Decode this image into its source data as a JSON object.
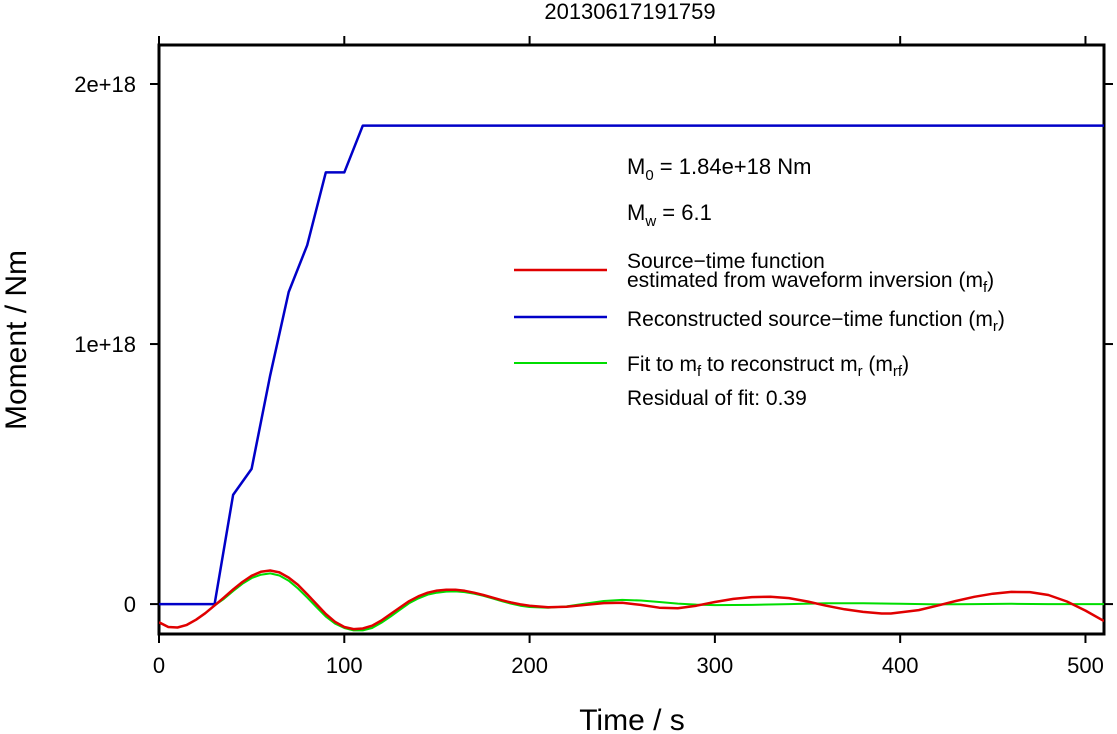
{
  "chart_data": {
    "type": "line",
    "title": "20130617191759",
    "xlabel": "Time / s",
    "ylabel": "Moment / Nm",
    "xlim": [
      0,
      510
    ],
    "ylim": [
      -1.15e+17,
      2.15e+18
    ],
    "x_ticks": [
      0,
      100,
      200,
      300,
      400,
      500
    ],
    "x_tick_labels": [
      "0",
      "100",
      "200",
      "300",
      "400",
      "500"
    ],
    "y_ticks": [
      0,
      1e+18,
      2e+18
    ],
    "y_tick_labels": [
      "0",
      "1e+18",
      "2e+18"
    ],
    "grid": false,
    "legend_placement": "right",
    "annotations": {
      "m0_main": "M",
      "m0_sub": "0",
      "m0_rest": " = 1.84e+18 Nm",
      "mw_main": "M",
      "mw_sub": "w",
      "mw_rest": " = 6.1",
      "residual": "Residual of fit: 0.39"
    },
    "legend": [
      {
        "color": "#e00000",
        "line1": "Source−time function",
        "line2_main": "estimated from waveform inversion (m",
        "line2_sub": "f",
        "line2_end": ")"
      },
      {
        "color": "#0000c8",
        "text_main": "Reconstructed source−time function (m",
        "text_sub": "r",
        "text_end": ")"
      },
      {
        "color": "#00dd00",
        "t1": "Fit to m",
        "s1": "f",
        "t2": " to reconstruct m",
        "s2": "r",
        "t3": " (m",
        "s3": "rf",
        "t4": ")"
      }
    ],
    "series": [
      {
        "color": "#0000c8",
        "x": [
          0,
          30,
          40,
          50,
          60,
          70,
          80,
          90,
          100,
          110,
          510
        ],
        "y": [
          0,
          0,
          4.2e+17,
          5.2e+17,
          8.8e+17,
          1.2e+18,
          1.38e+18,
          1.66e+18,
          1.66e+18,
          1.84e+18,
          1.84e+18
        ]
      },
      {
        "color": "#e00000",
        "x": [
          0,
          5,
          10,
          15,
          20,
          25,
          30,
          35,
          40,
          45,
          50,
          55,
          60,
          65,
          70,
          75,
          80,
          85,
          90,
          95,
          100,
          105,
          110,
          115,
          120,
          125,
          130,
          135,
          140,
          145,
          150,
          155,
          160,
          165,
          170,
          175,
          180,
          185,
          190,
          195,
          200,
          210,
          220,
          230,
          240,
          250,
          260,
          270,
          280,
          290,
          300,
          310,
          320,
          330,
          340,
          350,
          360,
          370,
          380,
          390,
          395,
          400,
          410,
          420,
          430,
          440,
          450,
          460,
          470,
          480,
          490,
          500,
          510
        ],
        "y": [
          -7e+16,
          -8.8e+16,
          -9e+16,
          -8e+16,
          -6e+16,
          -3.5e+16,
          -5000000000000000.0,
          2.5e+16,
          5.6e+16,
          8.5e+16,
          1.09e+17,
          1.24e+17,
          1.29e+17,
          1.22e+17,
          1.02e+17,
          7.4e+16,
          3.8e+16,
          0,
          -3.8e+16,
          -6.8e+16,
          -8.8e+16,
          -9.6e+16,
          -9.4e+16,
          -8.3e+16,
          -6.3e+16,
          -3.8e+16,
          -1.3e+16,
          1.1e+16,
          3e+16,
          4.4e+16,
          5.2e+16,
          5.5e+16,
          5.5e+16,
          5.1e+16,
          4.4e+16,
          3.5e+16,
          2.5e+16,
          1.5e+16,
          6000000000000000.0,
          -1000000000000000.0,
          -6000000000000000.0,
          -1.2e+16,
          -1e+16,
          -3000000000000000.0,
          4000000000000000.0,
          5000000000000000.0,
          -3000000000000000.0,
          -1.4e+16,
          -1.6e+16,
          -6000000000000000.0,
          8000000000000000.0,
          2e+16,
          2.7e+16,
          2.8e+16,
          2.3e+16,
          1e+16,
          -6000000000000000.0,
          -2e+16,
          -3e+16,
          -3.6e+16,
          -3.6e+16,
          -3.2e+16,
          -2.3e+16,
          -6000000000000000.0,
          1.2e+16,
          2.8e+16,
          4e+16,
          4.7e+16,
          4.6e+16,
          3.5e+16,
          1e+16,
          -2.5e+16,
          -6.5e+16
        ]
      },
      {
        "color": "#00dd00",
        "x": [
          30,
          35,
          40,
          45,
          50,
          55,
          60,
          65,
          70,
          75,
          80,
          85,
          90,
          95,
          100,
          105,
          110,
          115,
          120,
          125,
          130,
          135,
          140,
          145,
          150,
          155,
          160,
          165,
          170,
          175,
          180,
          185,
          190,
          195,
          200,
          210,
          220,
          230,
          240,
          250,
          260,
          270,
          280,
          290,
          300,
          320,
          340,
          360,
          380,
          400,
          420,
          440,
          460,
          480,
          500,
          510
        ],
        "y": [
          -5000000000000000.0,
          2e+16,
          5e+16,
          7.8e+16,
          1e+17,
          1.13e+17,
          1.18e+17,
          1.1e+17,
          9e+16,
          6e+16,
          2.5e+16,
          -1.2e+16,
          -4.8e+16,
          -7.5e+16,
          -9.2e+16,
          -1.01e+17,
          -1.01e+17,
          -9.2e+16,
          -7.2e+16,
          -4.8e+16,
          -2.2e+16,
          3000000000000000.0,
          2.2e+16,
          3.6e+16,
          4.4e+16,
          4.8e+16,
          4.9e+16,
          4.6e+16,
          4e+16,
          3.2e+16,
          2.2e+16,
          1.1e+16,
          2000000000000000.0,
          -6000000000000000.0,
          -1.1e+16,
          -1.4e+16,
          -9000000000000000.0,
          2000000000000000.0,
          1.2e+16,
          1.6e+16,
          1.4e+16,
          8000000000000000.0,
          2000000000000000.0,
          -2000000000000000.0,
          -4000000000000000.0,
          -3000000000000000.0,
          0,
          3000000000000000.0,
          3000000000000000.0,
          1000000000000000.0,
          -1000000000000000.0,
          0,
          1000000000000000.0,
          0,
          0,
          0
        ]
      }
    ]
  }
}
